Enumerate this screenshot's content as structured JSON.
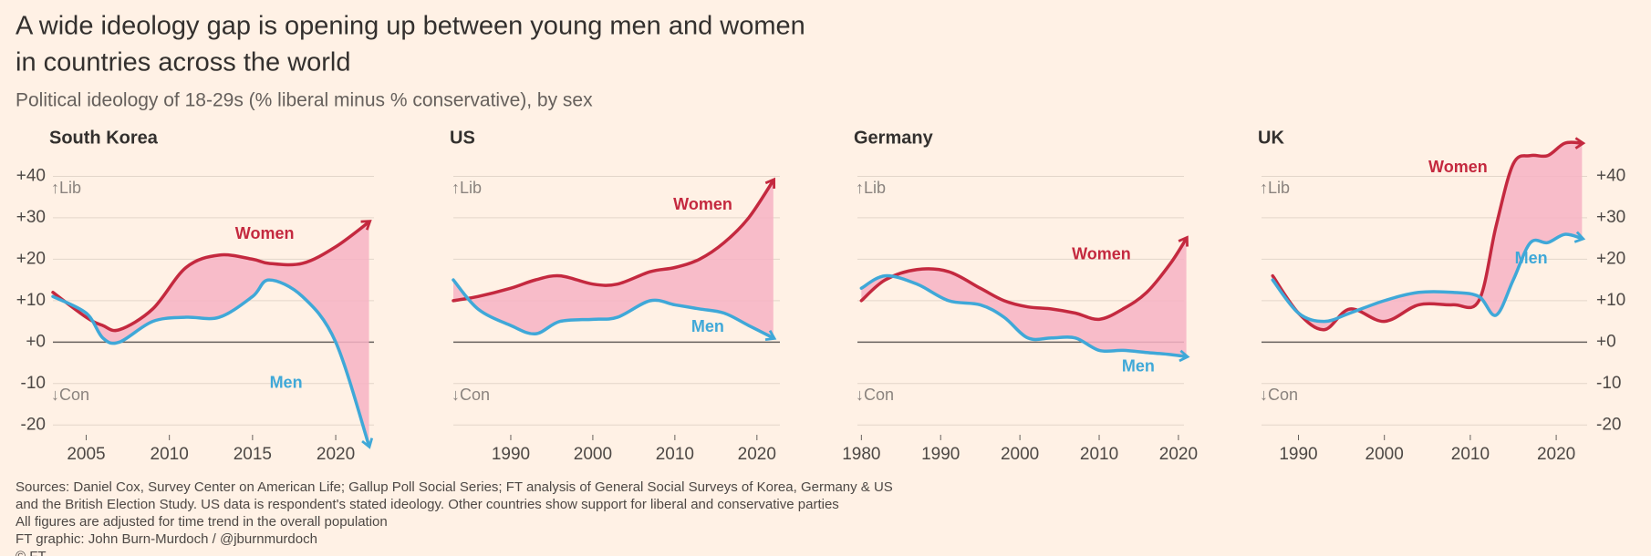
{
  "title": [
    "A wide ideology gap is opening up between young men and women",
    "in countries across the world"
  ],
  "subtitle": "Political ideology of 18-29s (% liberal minus % conservative), by sex",
  "notes": [
    "Sources: Daniel Cox, Survey Center on American Life; Gallup Poll Social Series; FT analysis of General Social Surveys of Korea, Germany & US",
    "and the British Election Study. US data is respondent's stated ideology. Other countries show support for liberal and conservative parties",
    "All figures are adjusted for time trend in the overall population",
    "FT graphic: John Burn-Murdoch / @jburnmurdoch",
    "© FT"
  ],
  "chart_data": [
    {
      "type": "line",
      "title": "South Korea",
      "y_labels": "left",
      "annotations": [
        "↑Lib",
        "↓Con"
      ],
      "x": [
        2003,
        2005,
        2006,
        2007,
        2009,
        2011,
        2013,
        2015,
        2016,
        2018,
        2020,
        2022
      ],
      "series": [
        {
          "name": "Women",
          "color": "#c4293f",
          "values": [
            12,
            6,
            4,
            3,
            8,
            18,
            21,
            20,
            19,
            19,
            23,
            29
          ]
        },
        {
          "name": "Men",
          "color": "#3fa8d8",
          "values": [
            11,
            7,
            1,
            0,
            5,
            6,
            6,
            11,
            15,
            11,
            0,
            -25
          ]
        }
      ],
      "xlim": [
        2003,
        2022.3
      ],
      "xticks": [
        2005,
        2010,
        2015,
        2020
      ],
      "ylim": [
        -25,
        50
      ],
      "yticks": [
        {
          "value": 40,
          "label": "+40"
        },
        {
          "value": 30,
          "label": "+30"
        },
        {
          "value": 20,
          "label": "+20"
        },
        {
          "value": 10,
          "label": "+10"
        },
        {
          "value": 0,
          "label": "+0"
        },
        -10,
        -20
      ]
    },
    {
      "type": "line",
      "title": "US",
      "y_labels": "none",
      "annotations": [
        "↑Lib",
        "↓Con"
      ],
      "x": [
        1983,
        1986,
        1990,
        1993,
        1996,
        2000,
        2003,
        2007,
        2010,
        2013,
        2016,
        2019,
        2022
      ],
      "series": [
        {
          "name": "Women",
          "color": "#c4293f",
          "values": [
            10,
            11,
            13,
            15,
            16,
            14,
            14,
            17,
            18,
            20,
            24,
            30,
            39
          ]
        },
        {
          "name": "Men",
          "color": "#3fa8d8",
          "values": [
            15,
            8,
            4,
            2,
            5,
            5.5,
            6,
            10,
            9,
            8,
            7,
            4,
            1
          ]
        }
      ],
      "xlim": [
        1983,
        2022.8
      ],
      "xticks": [
        1990,
        2000,
        2010,
        2020
      ],
      "ylim": [
        -25,
        50
      ],
      "yticks": [
        40,
        30,
        20,
        10,
        0,
        -10,
        -20
      ]
    },
    {
      "type": "line",
      "title": "Germany",
      "y_labels": "none",
      "annotations": [
        "↑Lib",
        "↓Con"
      ],
      "x": [
        1980,
        1983,
        1987,
        1991,
        1995,
        1998,
        2001,
        2004,
        2007,
        2010,
        2013,
        2016,
        2019,
        2021
      ],
      "series": [
        {
          "name": "Women",
          "color": "#c4293f",
          "values": [
            10,
            15,
            17.5,
            17,
            13,
            10,
            8.5,
            8,
            7,
            5.5,
            8,
            12,
            19,
            25
          ]
        },
        {
          "name": "Men",
          "color": "#3fa8d8",
          "values": [
            13,
            16,
            14,
            10,
            9,
            6,
            1,
            1,
            1,
            -2,
            -2,
            -2.5,
            -3,
            -3.5
          ]
        }
      ],
      "xlim": [
        1979.5,
        2020.7
      ],
      "xticks": [
        1980,
        1990,
        2000,
        2010,
        2020
      ],
      "ylim": [
        -25,
        50
      ],
      "yticks": [
        40,
        30,
        20,
        10,
        0,
        -10,
        -20
      ]
    },
    {
      "type": "line",
      "title": "UK",
      "y_labels": "right",
      "annotations": [
        "↑Lib",
        "↓Con"
      ],
      "x": [
        1987,
        1990,
        1993,
        1996,
        2000,
        2004,
        2008,
        2011,
        2013,
        2015,
        2017,
        2019,
        2021,
        2023
      ],
      "series": [
        {
          "name": "Women",
          "color": "#c4293f",
          "values": [
            16,
            7,
            3,
            8,
            5,
            9,
            9,
            10,
            28,
            43,
            45,
            45,
            48,
            48
          ]
        },
        {
          "name": "Men",
          "color": "#3fa8d8",
          "values": [
            15,
            7,
            5,
            7,
            10,
            12,
            12,
            11,
            6.5,
            15,
            24,
            24,
            26,
            25
          ]
        }
      ],
      "xlim": [
        1985.7,
        2023.6
      ],
      "xticks": [
        1990,
        2000,
        2010,
        2020
      ],
      "ylim": [
        -25,
        50
      ],
      "yticks": [
        {
          "value": 40,
          "label": "+40"
        },
        {
          "value": 30,
          "label": "+30"
        },
        {
          "value": 20,
          "label": "+20"
        },
        {
          "value": 10,
          "label": "+10"
        },
        {
          "value": 0,
          "label": "+0"
        },
        -10,
        -20
      ]
    }
  ]
}
